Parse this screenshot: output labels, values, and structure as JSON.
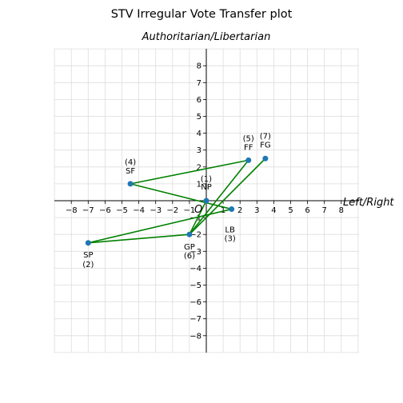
{
  "chart_data": {
    "type": "line",
    "title": "STV Irregular Vote Transfer plot",
    "subtitle": "Authoritarian/Libertarian",
    "xlabel": "Left/Right",
    "origin_label": "O",
    "xlim": [
      -8,
      8
    ],
    "ylim": [
      -8,
      8
    ],
    "ticks": [
      -8,
      -7,
      -6,
      -5,
      -4,
      -3,
      -2,
      -1,
      1,
      2,
      3,
      4,
      5,
      6,
      7,
      8
    ],
    "grid": true,
    "colors": {
      "line": "#008000",
      "point": "#1f77b4",
      "grid": "#dddddd",
      "axis": "#000000"
    },
    "points": [
      {
        "name": "NP",
        "number": "(1)",
        "x": 0,
        "y": 0
      },
      {
        "name": "SP",
        "number": "(2)",
        "x": -7,
        "y": -2.5
      },
      {
        "name": "LB",
        "number": "(3)",
        "x": 1.5,
        "y": -0.5
      },
      {
        "name": "SF",
        "number": "(4)",
        "x": -4.5,
        "y": 1
      },
      {
        "name": "FF",
        "number": "(5)",
        "x": 2.5,
        "y": 2.4
      },
      {
        "name": "GP",
        "number": "(6)",
        "x": -1,
        "y": -2
      },
      {
        "name": "FG",
        "number": "(7)",
        "x": 3.5,
        "y": 2.5
      }
    ],
    "path": [
      "FG",
      "GP",
      "FF",
      "SF",
      "LB",
      "SP",
      "GP",
      "NP"
    ]
  }
}
